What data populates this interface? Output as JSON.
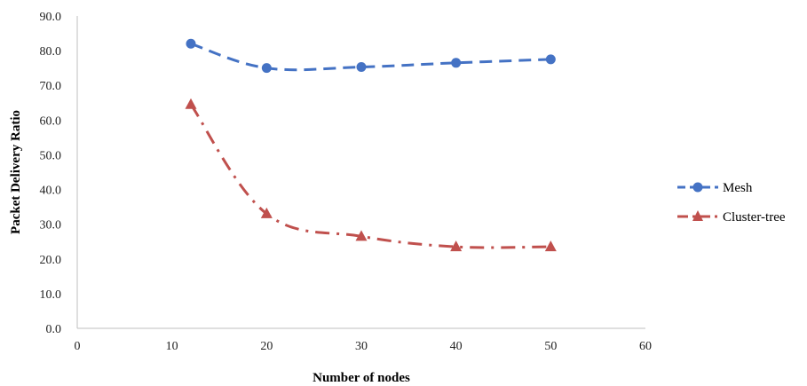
{
  "chart_data": {
    "type": "line",
    "title": "",
    "xlabel": "Number of nodes",
    "ylabel": "Packet Delivery Ratio",
    "xlim": [
      0,
      60
    ],
    "ylim": [
      0,
      90
    ],
    "x_ticks": [
      "0",
      "10",
      "20",
      "30",
      "40",
      "50",
      "60"
    ],
    "y_ticks": [
      "0.0",
      "10.0",
      "20.0",
      "30.0",
      "40.0",
      "50.0",
      "60.0",
      "70.0",
      "80.0",
      "90.0"
    ],
    "grid": false,
    "legend_position": "right",
    "series": [
      {
        "name": "Mesh",
        "color": "#4472C4",
        "marker": "circle",
        "line_style": "dashed",
        "points": [
          {
            "x": 12,
            "y": 82.0
          },
          {
            "x": 20,
            "y": 75.0
          },
          {
            "x": 30,
            "y": 75.3
          },
          {
            "x": 40,
            "y": 76.5
          },
          {
            "x": 50,
            "y": 77.5
          }
        ]
      },
      {
        "name": "Cluster-tree",
        "color": "#C0504D",
        "marker": "triangle",
        "line_style": "dash-dot",
        "points": [
          {
            "x": 12,
            "y": 64.5
          },
          {
            "x": 20,
            "y": 33.0
          },
          {
            "x": 30,
            "y": 26.5
          },
          {
            "x": 40,
            "y": 23.5
          },
          {
            "x": 50,
            "y": 23.5
          }
        ]
      }
    ]
  }
}
